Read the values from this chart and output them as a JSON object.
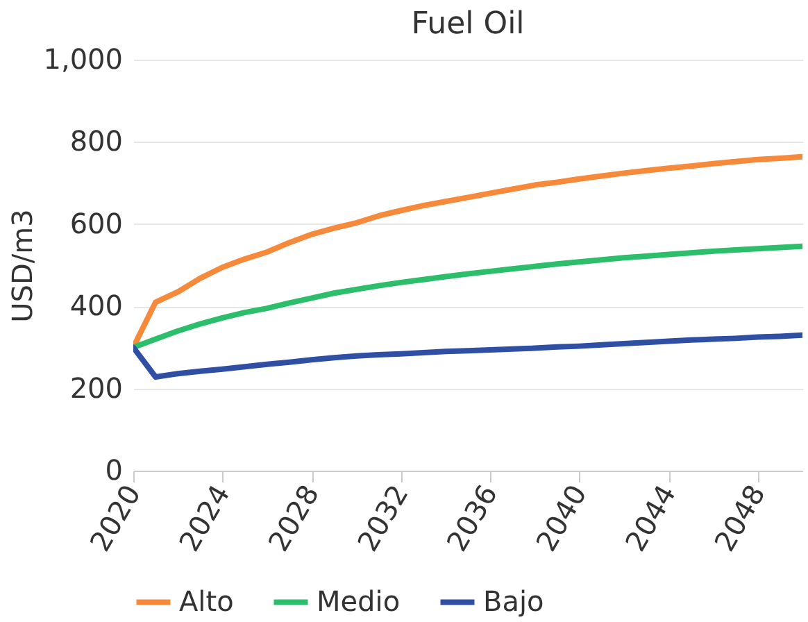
{
  "chart_data": {
    "type": "line",
    "title": "Fuel Oil",
    "ylabel": "USD/m3",
    "x": [
      2020,
      2021,
      2022,
      2023,
      2024,
      2025,
      2026,
      2027,
      2028,
      2029,
      2030,
      2031,
      2032,
      2033,
      2034,
      2035,
      2036,
      2037,
      2038,
      2039,
      2040,
      2041,
      2042,
      2043,
      2044,
      2045,
      2046,
      2047,
      2048,
      2049,
      2050
    ],
    "series": [
      {
        "name": "Alto",
        "color": "#f7893b",
        "values": [
          300,
          410,
          435,
          468,
          495,
          515,
          532,
          555,
          575,
          590,
          603,
          620,
          633,
          645,
          655,
          665,
          675,
          685,
          695,
          702,
          710,
          717,
          724,
          730,
          736,
          741,
          747,
          752,
          757,
          760,
          764
        ]
      },
      {
        "name": "Medio",
        "color": "#2dbe6c",
        "values": [
          300,
          320,
          340,
          357,
          372,
          385,
          395,
          408,
          420,
          432,
          441,
          450,
          458,
          465,
          472,
          479,
          485,
          491,
          497,
          503,
          508,
          513,
          518,
          522,
          526,
          530,
          534,
          537,
          540,
          543,
          546
        ]
      },
      {
        "name": "Bajo",
        "color": "#2e4fa3",
        "values": [
          300,
          228,
          236,
          242,
          247,
          253,
          259,
          264,
          270,
          275,
          279,
          282,
          284,
          287,
          290,
          292,
          294,
          296,
          298,
          301,
          303,
          306,
          309,
          312,
          315,
          318,
          320,
          322,
          325,
          327,
          330
        ]
      }
    ],
    "xlim": [
      2020,
      2050
    ],
    "xticks": [
      2020,
      2024,
      2028,
      2032,
      2036,
      2040,
      2044,
      2048
    ],
    "ylim": [
      0,
      1000
    ],
    "yticks": [
      0,
      200,
      400,
      600,
      800,
      {
        "value": 1000,
        "label": "1,000"
      }
    ],
    "grid": "y",
    "legend": "bottom",
    "marker": "none",
    "line_style": "solid"
  }
}
